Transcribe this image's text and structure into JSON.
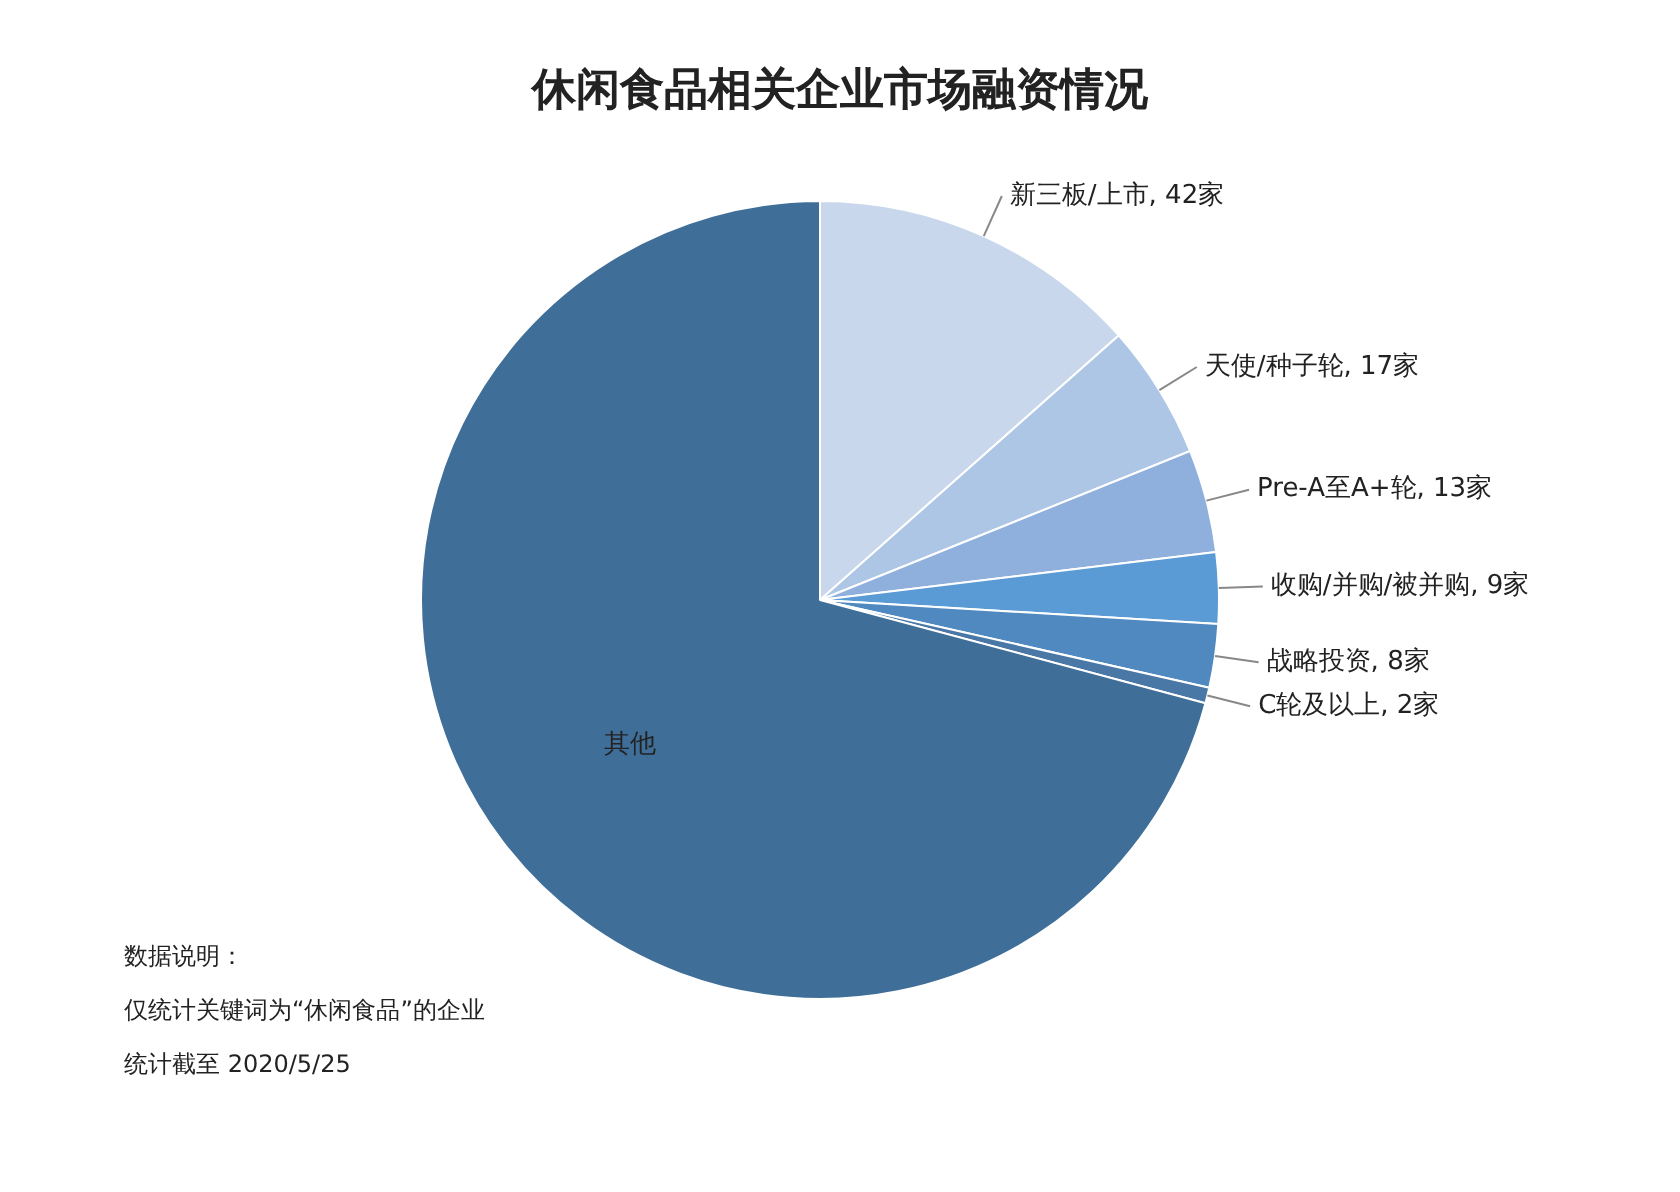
{
  "chart_data": {
    "type": "pie",
    "title": "休闲食品相关企业市场融资情况",
    "categories": [
      "新三板/上市",
      "天使/种子轮",
      "Pre-A至A+轮",
      "收购/并购/被并购",
      "战略投资",
      "C轮及以上",
      "其他"
    ],
    "values": [
      42,
      17,
      13,
      9,
      8,
      2,
      221
    ],
    "value_labels": [
      "42家",
      "17家",
      "13家",
      "9家",
      "8家",
      "2家",
      null
    ],
    "colors": [
      "#c9d7ec",
      "#adc6e6",
      "#8fb0dc",
      "#5b9bd5",
      "#5088c0",
      "#4a78a6",
      "#3f6e98"
    ],
    "legend": false,
    "annotations": [
      "数据说明：",
      "仅统计关键词为“休闲食品”的企业",
      "统计截至 2020/5/25"
    ]
  }
}
